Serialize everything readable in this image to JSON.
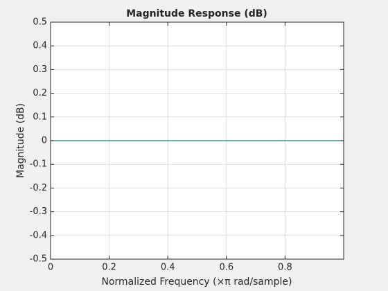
{
  "chart_data": {
    "type": "line",
    "title": "Magnitude Response (dB)",
    "x_label": "Normalized Frequency (×π rad/sample)",
    "y_label": "Magnitude (dB)",
    "x": [
      0,
      1
    ],
    "series": [
      {
        "color": "#1f7a70",
        "values": [
          0,
          0
        ]
      }
    ],
    "xlim": [
      0,
      1
    ],
    "xticks": [
      0,
      0.2,
      0.4,
      0.6,
      0.8
    ],
    "ylim": [
      -0.5,
      0.5
    ],
    "yticks": [
      -0.5,
      -0.4,
      -0.3,
      -0.2,
      -0.1,
      0,
      0.1,
      0.2,
      0.3,
      0.4,
      0.5
    ],
    "grid": true
  }
}
